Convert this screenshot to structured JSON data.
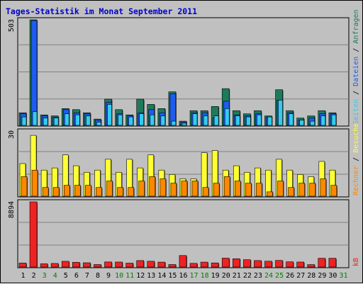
{
  "title": "Tages-Statistik im Monat September 2011",
  "colors": {
    "anfragen": "#1f7a5a",
    "dateien": "#1e5cf0",
    "seiten": "#33ccee",
    "besuche": "#ffff33",
    "rechner": "#ff8800",
    "kb": "#ee2222",
    "weekend_label": "#008000",
    "weekday_label": "#000000"
  },
  "chart_data": [
    {
      "type": "bar",
      "panel": "top",
      "ymax_label": "503",
      "ylim": [
        0,
        503
      ],
      "right_labels": [
        {
          "text": "Seiten",
          "color": "#33ccee"
        },
        {
          "text": " / ",
          "color": "#000000"
        },
        {
          "text": "Dateien",
          "color": "#1e5cf0"
        },
        {
          "text": " / ",
          "color": "#000000"
        },
        {
          "text": "Anfragen",
          "color": "#1f7a5a"
        }
      ],
      "series": [
        {
          "name": "Anfragen",
          "values": [
            60,
            503,
            50,
            45,
            80,
            75,
            60,
            30,
            125,
            75,
            50,
            125,
            100,
            80,
            160,
            20,
            70,
            70,
            90,
            175,
            70,
            55,
            70,
            45,
            170,
            70,
            35,
            45,
            70,
            60,
            0
          ]
        },
        {
          "name": "Dateien",
          "values": [
            55,
            500,
            45,
            40,
            75,
            60,
            55,
            25,
            110,
            55,
            45,
            60,
            75,
            60,
            150,
            15,
            60,
            60,
            35,
            115,
            50,
            45,
            55,
            40,
            120,
            60,
            25,
            35,
            55,
            55,
            0
          ]
        },
        {
          "name": "Seiten",
          "values": [
            40,
            65,
            35,
            35,
            55,
            50,
            45,
            15,
            100,
            50,
            40,
            55,
            50,
            45,
            20,
            10,
            55,
            45,
            45,
            80,
            45,
            40,
            50,
            40,
            120,
            55,
            25,
            20,
            45,
            50,
            0
          ]
        }
      ]
    },
    {
      "type": "bar",
      "panel": "middle",
      "ymax_label": "30",
      "ylim": [
        0,
        30
      ],
      "right_labels": [
        {
          "text": "Rechner",
          "color": "#ff8800"
        },
        {
          "text": " / ",
          "color": "#000000"
        },
        {
          "text": "Besuche",
          "color": "#ffff33"
        }
      ],
      "series": [
        {
          "name": "Besuche",
          "values": [
            15,
            28,
            12,
            13,
            19,
            14,
            11,
            12,
            17,
            11,
            17,
            13,
            19,
            12,
            10,
            8,
            8,
            20,
            21,
            12,
            14,
            11,
            13,
            12,
            17,
            12,
            10,
            9,
            16,
            12,
            0
          ]
        },
        {
          "name": "Rechner",
          "values": [
            9,
            12,
            4,
            4,
            5,
            5,
            5,
            4,
            7,
            4,
            4,
            7,
            9,
            8,
            6,
            7,
            7,
            4,
            6,
            9,
            7,
            6,
            6,
            2,
            7,
            4,
            6,
            6,
            8,
            5,
            0
          ]
        }
      ]
    },
    {
      "type": "bar",
      "panel": "bottom",
      "ymax_label": "8894",
      "ylim": [
        0,
        8894
      ],
      "right_labels": [
        {
          "text": "kB",
          "color": "#ee2222"
        }
      ],
      "series": [
        {
          "name": "kB",
          "values": [
            540,
            8894,
            440,
            490,
            780,
            640,
            580,
            340,
            690,
            680,
            530,
            880,
            790,
            670,
            340,
            1570,
            500,
            670,
            560,
            1210,
            1130,
            1000,
            880,
            790,
            900,
            710,
            680,
            330,
            1190,
            1190,
            0
          ]
        }
      ]
    }
  ],
  "x_labels": [
    {
      "text": "1",
      "weekend": false
    },
    {
      "text": "2",
      "weekend": false
    },
    {
      "text": "3",
      "weekend": true
    },
    {
      "text": "4",
      "weekend": true
    },
    {
      "text": "5",
      "weekend": false
    },
    {
      "text": "6",
      "weekend": false
    },
    {
      "text": "7",
      "weekend": false
    },
    {
      "text": "8",
      "weekend": false
    },
    {
      "text": "9",
      "weekend": false
    },
    {
      "text": "10",
      "weekend": true
    },
    {
      "text": "11",
      "weekend": true
    },
    {
      "text": "12",
      "weekend": false
    },
    {
      "text": "13",
      "weekend": false
    },
    {
      "text": "14",
      "weekend": false
    },
    {
      "text": "15",
      "weekend": false
    },
    {
      "text": "16",
      "weekend": false
    },
    {
      "text": "17",
      "weekend": true
    },
    {
      "text": "18",
      "weekend": true
    },
    {
      "text": "19",
      "weekend": false
    },
    {
      "text": "20",
      "weekend": false
    },
    {
      "text": "21",
      "weekend": false
    },
    {
      "text": "22",
      "weekend": false
    },
    {
      "text": "23",
      "weekend": false
    },
    {
      "text": "24",
      "weekend": true
    },
    {
      "text": "25",
      "weekend": true
    },
    {
      "text": "26",
      "weekend": false
    },
    {
      "text": "27",
      "weekend": false
    },
    {
      "text": "28",
      "weekend": false
    },
    {
      "text": "29",
      "weekend": false
    },
    {
      "text": "30",
      "weekend": false
    },
    {
      "text": "31",
      "weekend": true
    }
  ]
}
